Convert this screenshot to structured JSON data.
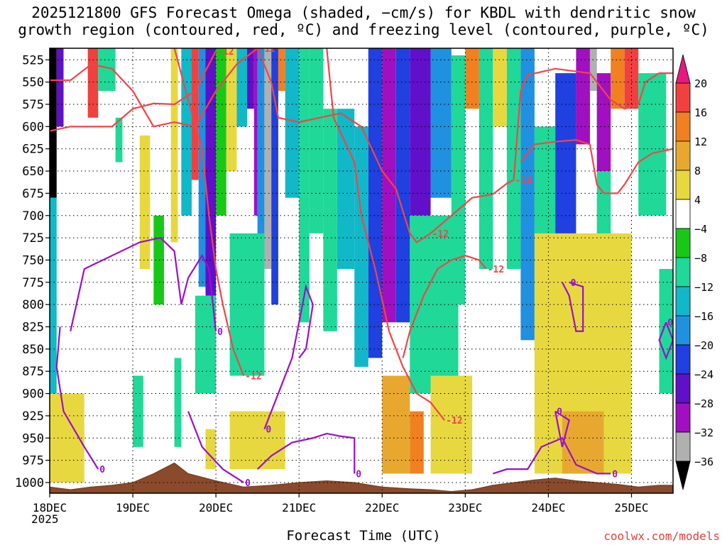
{
  "title": "2025121800 GFS Forecast Omega (shaded, −cm/s) for KBDL with dendritic snow\ngrowth region (contoured, red, ºC) and freezing level (contoured, purple, ºC)",
  "xlabel": "Forecast Time (UTC)",
  "year_label": "2025",
  "credit": "coolwx.com/models",
  "chart_data": {
    "type": "heatmap",
    "title": "2025121800 GFS Forecast Omega (shaded, −cm/s) for KBDL with dendritic snow growth region (contoured, red, ºC) and freezing level (contoured, purple, ºC)",
    "xlabel": "Forecast Time (UTC)",
    "ylabel": "",
    "y_reversed": true,
    "x_ticks": [
      "18DEC",
      "19DEC",
      "20DEC",
      "21DEC",
      "22DEC",
      "23DEC",
      "24DEC",
      "25DEC"
    ],
    "y_ticks": [
      525,
      550,
      575,
      600,
      625,
      650,
      675,
      700,
      725,
      750,
      775,
      800,
      825,
      850,
      875,
      900,
      925,
      950,
      975,
      1000
    ],
    "xlim_hours": [
      0,
      180
    ],
    "ylim": [
      1012,
      512
    ],
    "grid": true,
    "colorbar": {
      "labels": [
        20,
        16,
        12,
        8,
        4,
        -4,
        -8,
        -12,
        -16,
        -20,
        -24,
        -28,
        -32,
        -36
      ],
      "colors": {
        "above_20": "#e8197e",
        "16_to_20": "#f04040",
        "12_to_16": "#f08020",
        "8_to_12": "#e8a830",
        "4_to_8": "#e8d840",
        "-4_to_4": "#ffffff",
        "-8_to_-4": "#18c818",
        "-12_to_-8": "#20d898",
        "-16_to_-12": "#10b8c8",
        "-20_to_-16": "#2090e0",
        "-24_to_-20": "#2040e0",
        "-28_to_-24": "#6010c8",
        "-32_to_-28": "#a010c0",
        "-36_to_-32": "#b0b0b0",
        "below_-36": "#000000"
      }
    },
    "omega_bands": [
      {
        "h0": 0,
        "h1": 2,
        "p0": 512,
        "p1": 680,
        "v": -40
      },
      {
        "h0": 0,
        "h1": 2,
        "p0": 680,
        "p1": 900,
        "v": -14
      },
      {
        "h0": 2,
        "h1": 4,
        "p0": 512,
        "p1": 600,
        "v": -26
      },
      {
        "h0": 0,
        "h1": 10,
        "p0": 900,
        "p1": 1000,
        "v": 5
      },
      {
        "h0": 11,
        "h1": 14,
        "p0": 512,
        "p1": 590,
        "v": 18
      },
      {
        "h0": 14,
        "h1": 19,
        "p0": 512,
        "p1": 560,
        "v": -8
      },
      {
        "h0": 19,
        "h1": 21,
        "p0": 590,
        "p1": 640,
        "v": -9
      },
      {
        "h0": 26,
        "h1": 29,
        "p0": 610,
        "p1": 760,
        "v": 5
      },
      {
        "h0": 24,
        "h1": 27,
        "p0": 880,
        "p1": 960,
        "v": -9
      },
      {
        "h0": 30,
        "h1": 33,
        "p0": 700,
        "p1": 800,
        "v": -6
      },
      {
        "h0": 35,
        "h1": 37,
        "p0": 512,
        "p1": 730,
        "v": 6
      },
      {
        "h0": 36,
        "h1": 38,
        "p0": 860,
        "p1": 960,
        "v": -9
      },
      {
        "h0": 38,
        "h1": 41,
        "p0": 512,
        "p1": 700,
        "v": -12
      },
      {
        "h0": 41,
        "h1": 43,
        "p0": 512,
        "p1": 660,
        "v": 18
      },
      {
        "h0": 43,
        "h1": 45,
        "p0": 512,
        "p1": 780,
        "v": -18
      },
      {
        "h0": 45,
        "h1": 48,
        "p0": 512,
        "p1": 790,
        "v": -26
      },
      {
        "h0": 42,
        "h1": 48,
        "p0": 790,
        "p1": 900,
        "v": -9
      },
      {
        "h0": 45,
        "h1": 48,
        "p0": 940,
        "p1": 985,
        "v": 6
      },
      {
        "h0": 48,
        "h1": 51,
        "p0": 512,
        "p1": 700,
        "v": -7
      },
      {
        "h0": 51,
        "h1": 54,
        "p0": 512,
        "p1": 650,
        "v": 6
      },
      {
        "h0": 54,
        "h1": 57,
        "p0": 512,
        "p1": 600,
        "v": -14
      },
      {
        "h0": 57,
        "h1": 59,
        "p0": 512,
        "p1": 580,
        "v": -24
      },
      {
        "h0": 59,
        "h1": 60,
        "p0": 512,
        "p1": 700,
        "v": -30
      },
      {
        "h0": 60,
        "h1": 62,
        "p0": 512,
        "p1": 820,
        "v": -17
      },
      {
        "h0": 52,
        "h1": 62,
        "p0": 720,
        "p1": 880,
        "v": -9
      },
      {
        "h0": 62,
        "h1": 64,
        "p0": 512,
        "p1": 760,
        "v": -34
      },
      {
        "h0": 64,
        "h1": 66,
        "p0": 512,
        "p1": 800,
        "v": -22
      },
      {
        "h0": 66,
        "h1": 68,
        "p0": 512,
        "p1": 560,
        "v": 14
      },
      {
        "h0": 52,
        "h1": 68,
        "p0": 920,
        "p1": 985,
        "v": 7
      },
      {
        "h0": 68,
        "h1": 72,
        "p0": 512,
        "p1": 680,
        "v": -14
      },
      {
        "h0": 72,
        "h1": 75,
        "p0": 512,
        "p1": 820,
        "v": -11
      },
      {
        "h0": 75,
        "h1": 79,
        "p0": 512,
        "p1": 720,
        "v": -9
      },
      {
        "h0": 79,
        "h1": 83,
        "p0": 580,
        "p1": 830,
        "v": -10
      },
      {
        "h0": 83,
        "h1": 88,
        "p0": 580,
        "p1": 760,
        "v": -12
      },
      {
        "h0": 88,
        "h1": 92,
        "p0": 600,
        "p1": 870,
        "v": -15
      },
      {
        "h0": 92,
        "h1": 96,
        "p0": 512,
        "p1": 860,
        "v": -20
      },
      {
        "h0": 96,
        "h1": 100,
        "p0": 512,
        "p1": 820,
        "v": -30
      },
      {
        "h0": 100,
        "h1": 104,
        "p0": 512,
        "p1": 820,
        "v": -22
      },
      {
        "h0": 104,
        "h1": 110,
        "p0": 512,
        "p1": 700,
        "v": -26
      },
      {
        "h0": 110,
        "h1": 116,
        "p0": 512,
        "p1": 680,
        "v": -17
      },
      {
        "h0": 104,
        "h1": 118,
        "p0": 700,
        "p1": 900,
        "v": -11
      },
      {
        "h0": 96,
        "h1": 104,
        "p0": 880,
        "p1": 990,
        "v": 10
      },
      {
        "h0": 110,
        "h1": 122,
        "p0": 880,
        "p1": 990,
        "v": 7
      },
      {
        "h0": 104,
        "h1": 108,
        "p0": 920,
        "p1": 990,
        "v": 14
      },
      {
        "h0": 116,
        "h1": 120,
        "p0": 520,
        "p1": 800,
        "v": -9
      },
      {
        "h0": 120,
        "h1": 124,
        "p0": 512,
        "p1": 580,
        "v": 14
      },
      {
        "h0": 124,
        "h1": 128,
        "p0": 512,
        "p1": 760,
        "v": -8
      },
      {
        "h0": 128,
        "h1": 132,
        "p0": 512,
        "p1": 600,
        "v": 7
      },
      {
        "h0": 132,
        "h1": 136,
        "p0": 512,
        "p1": 760,
        "v": -9
      },
      {
        "h0": 136,
        "h1": 140,
        "p0": 512,
        "p1": 840,
        "v": -16
      },
      {
        "h0": 140,
        "h1": 146,
        "p0": 600,
        "p1": 860,
        "v": -11
      },
      {
        "h0": 146,
        "h1": 152,
        "p0": 540,
        "p1": 800,
        "v": -22
      },
      {
        "h0": 152,
        "h1": 156,
        "p0": 512,
        "p1": 620,
        "v": -28
      },
      {
        "h0": 156,
        "h1": 158,
        "p0": 512,
        "p1": 560,
        "v": -33
      },
      {
        "h0": 158,
        "h1": 162,
        "p0": 540,
        "p1": 650,
        "v": -30
      },
      {
        "h0": 158,
        "h1": 162,
        "p0": 650,
        "p1": 850,
        "v": -9
      },
      {
        "h0": 162,
        "h1": 166,
        "p0": 512,
        "p1": 580,
        "v": 14
      },
      {
        "h0": 166,
        "h1": 170,
        "p0": 512,
        "p1": 580,
        "v": 17
      },
      {
        "h0": 170,
        "h1": 178,
        "p0": 540,
        "p1": 700,
        "v": -8
      },
      {
        "h0": 140,
        "h1": 168,
        "p0": 720,
        "p1": 990,
        "v": 6
      },
      {
        "h0": 148,
        "h1": 160,
        "p0": 920,
        "p1": 990,
        "v": 9
      },
      {
        "h0": 176,
        "h1": 180,
        "p0": 760,
        "p1": 900,
        "v": -9
      }
    ],
    "dgz_contours": [
      {
        "label": "-12",
        "points": [
          [
            0,
            548
          ],
          [
            6,
            548
          ],
          [
            12,
            530
          ],
          [
            18,
            535
          ],
          [
            24,
            560
          ],
          [
            30,
            600
          ],
          [
            36,
            595
          ],
          [
            42,
            600
          ],
          [
            48,
            560
          ],
          [
            54,
            530
          ],
          [
            60,
            512
          ]
        ]
      },
      {
        "label": "-12",
        "points": [
          [
            0,
            605
          ],
          [
            6,
            600
          ],
          [
            12,
            600
          ],
          [
            18,
            600
          ],
          [
            24,
            580
          ],
          [
            30,
            574
          ],
          [
            36,
            575
          ],
          [
            42,
            560
          ],
          [
            48,
            515
          ]
        ]
      },
      {
        "label": "-12",
        "points": [
          [
            36,
            512
          ],
          [
            40,
            570
          ],
          [
            44,
            625
          ],
          [
            46,
            700
          ],
          [
            48,
            760
          ],
          [
            50,
            800
          ],
          [
            53,
            850
          ],
          [
            56,
            880
          ]
        ]
      },
      {
        "label": "-12",
        "points": [
          [
            60,
            512
          ],
          [
            64,
            550
          ],
          [
            66,
            590
          ],
          [
            72,
            595
          ],
          [
            78,
            590
          ],
          [
            84,
            585
          ],
          [
            90,
            600
          ],
          [
            96,
            650
          ],
          [
            100,
            670
          ],
          [
            104,
            720
          ],
          [
            106,
            730
          ],
          [
            110,
            720
          ]
        ]
      },
      {
        "label": "-18",
        "points": [
          [
            110,
            720
          ],
          [
            116,
            700
          ],
          [
            122,
            680
          ],
          [
            128,
            676
          ],
          [
            132,
            664
          ],
          [
            134,
            660
          ]
        ]
      },
      {
        "label": "-12",
        "points": [
          [
            80,
            512
          ],
          [
            82,
            590
          ],
          [
            88,
            640
          ],
          [
            90,
            700
          ],
          [
            94,
            760
          ],
          [
            98,
            830
          ],
          [
            102,
            870
          ],
          [
            106,
            900
          ],
          [
            110,
            910
          ],
          [
            114,
            930
          ]
        ]
      },
      {
        "label": "-12",
        "points": [
          [
            102,
            860
          ],
          [
            104,
            830
          ],
          [
            108,
            790
          ],
          [
            112,
            760
          ],
          [
            116,
            750
          ],
          [
            120,
            745
          ],
          [
            124,
            750
          ],
          [
            126,
            760
          ]
        ]
      },
      {
        "label": "-18",
        "points": [
          [
            134,
            660
          ],
          [
            136,
            560
          ],
          [
            138,
            542
          ],
          [
            146,
            535
          ],
          [
            156,
            540
          ],
          [
            162,
            570
          ],
          [
            166,
            580
          ],
          [
            170,
            575
          ],
          [
            172,
            550
          ],
          [
            176,
            540
          ],
          [
            180,
            540
          ]
        ]
      },
      {
        "label": "-12",
        "points": [
          [
            136,
            640
          ],
          [
            140,
            620
          ],
          [
            146,
            617
          ],
          [
            152,
            615
          ],
          [
            156,
            620
          ],
          [
            158,
            665
          ],
          [
            160,
            675
          ],
          [
            164,
            675
          ],
          [
            166,
            665
          ],
          [
            170,
            640
          ],
          [
            174,
            630
          ],
          [
            180,
            625
          ]
        ]
      }
    ],
    "freezing_contours": [
      {
        "label": "0",
        "points": [
          [
            3,
            825
          ],
          [
            2,
            870
          ],
          [
            4,
            920
          ],
          [
            10,
            960
          ],
          [
            14,
            985
          ]
        ]
      },
      {
        "label": "0",
        "points": [
          [
            6,
            830
          ],
          [
            10,
            760
          ],
          [
            18,
            745
          ],
          [
            26,
            730
          ],
          [
            32,
            725
          ],
          [
            36,
            740
          ],
          [
            38,
            800
          ],
          [
            40,
            770
          ],
          [
            44,
            745
          ],
          [
            46,
            760
          ],
          [
            48,
            830
          ]
        ]
      },
      {
        "label": "0",
        "points": [
          [
            40,
            920
          ],
          [
            44,
            960
          ],
          [
            50,
            985
          ],
          [
            56,
            1000
          ]
        ]
      },
      {
        "label": "0",
        "points": [
          [
            72,
            860
          ],
          [
            74,
            850
          ],
          [
            76,
            800
          ],
          [
            74,
            780
          ],
          [
            70,
            860
          ],
          [
            66,
            900
          ],
          [
            62,
            940
          ]
        ]
      },
      {
        "label": "0",
        "points": [
          [
            60,
            985
          ],
          [
            64,
            970
          ],
          [
            70,
            955
          ],
          [
            76,
            950
          ],
          [
            80,
            945
          ],
          [
            84,
            948
          ],
          [
            88,
            950
          ],
          [
            88,
            990
          ]
        ]
      },
      {
        "label": "0",
        "points": [
          [
            128,
            990
          ],
          [
            132,
            985
          ],
          [
            138,
            985
          ],
          [
            142,
            960
          ],
          [
            148,
            950
          ],
          [
            152,
            980
          ],
          [
            158,
            990
          ],
          [
            162,
            990
          ]
        ]
      },
      {
        "label": "0",
        "points": [
          [
            148,
            775
          ],
          [
            150,
            790
          ],
          [
            152,
            830
          ],
          [
            154,
            830
          ],
          [
            154,
            780
          ],
          [
            150,
            775
          ]
        ]
      },
      {
        "label": "0",
        "points": [
          [
            146,
            920
          ],
          [
            150,
            930
          ],
          [
            148,
            960
          ],
          [
            146,
            920
          ]
        ]
      },
      {
        "label": "0",
        "points": [
          [
            178,
            820
          ],
          [
            180,
            840
          ],
          [
            178,
            860
          ],
          [
            176,
            840
          ],
          [
            178,
            820
          ]
        ]
      }
    ],
    "terrain": [
      [
        0,
        1005
      ],
      [
        6,
        1008
      ],
      [
        12,
        1005
      ],
      [
        18,
        1003
      ],
      [
        24,
        1000
      ],
      [
        30,
        990
      ],
      [
        36,
        978
      ],
      [
        40,
        990
      ],
      [
        48,
        998
      ],
      [
        56,
        1005
      ],
      [
        64,
        1003
      ],
      [
        72,
        1000
      ],
      [
        80,
        998
      ],
      [
        88,
        1000
      ],
      [
        96,
        1005
      ],
      [
        104,
        1007
      ],
      [
        110,
        1008
      ],
      [
        116,
        1010
      ],
      [
        122,
        1008
      ],
      [
        128,
        1003
      ],
      [
        134,
        1000
      ],
      [
        140,
        997
      ],
      [
        146,
        995
      ],
      [
        152,
        998
      ],
      [
        158,
        1000
      ],
      [
        164,
        1002
      ],
      [
        170,
        1005
      ],
      [
        176,
        1003
      ],
      [
        180,
        1003
      ]
    ]
  }
}
